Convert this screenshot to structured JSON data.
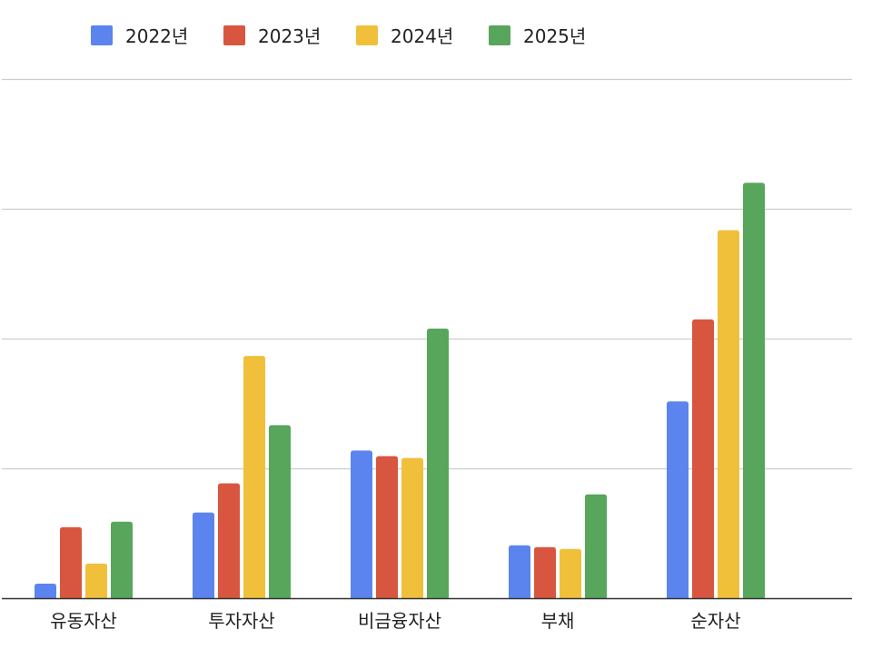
{
  "chart_data": {
    "type": "bar",
    "title": "",
    "xlabel": "",
    "ylabel": "",
    "categories": [
      "유동자산",
      "투자자산",
      "비금융자산",
      "부채",
      "순자산"
    ],
    "series": [
      {
        "name": "2022년",
        "color": "#5b84ee",
        "values": [
          8,
          47,
          81,
          29,
          108
        ]
      },
      {
        "name": "2023년",
        "color": "#d8563f",
        "values": [
          39,
          63,
          78,
          28,
          153
        ]
      },
      {
        "name": "2024년",
        "color": "#f0c03a",
        "values": [
          19,
          133,
          77,
          27,
          202
        ]
      },
      {
        "name": "2025년",
        "color": "#57a65b",
        "values": [
          42,
          95,
          148,
          57,
          228
        ]
      }
    ],
    "ylim": [
      0,
      285
    ],
    "ytick_step": 71.25,
    "show_y_tick_labels": false,
    "grid": true,
    "legend_position": "top-left"
  }
}
